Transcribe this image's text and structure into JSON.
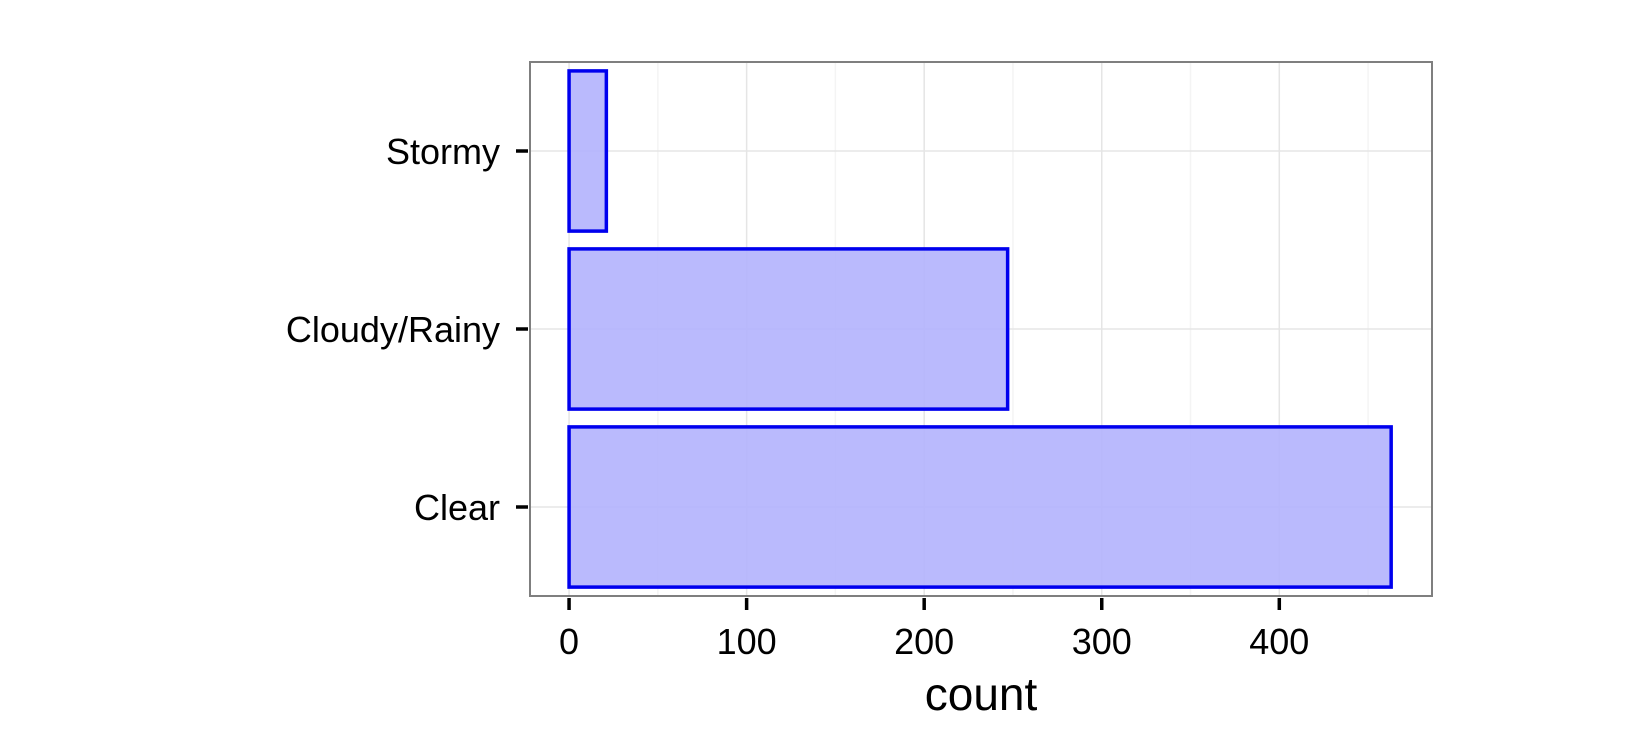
{
  "chart_data": {
    "type": "bar",
    "orientation": "horizontal",
    "categories": [
      "Clear",
      "Cloudy/Rainy",
      "Stormy"
    ],
    "values": [
      463,
      247,
      21
    ],
    "xlabel": "count",
    "ylabel": "",
    "xlim": [
      -22,
      486
    ],
    "x_ticks": [
      0,
      100,
      200,
      300,
      400
    ],
    "grid": true,
    "colors": {
      "bar_fill": "#b2b2fd",
      "bar_stroke": "#0000ee",
      "panel_border": "#7f7f7f",
      "grid_major": "#e5e5e5",
      "grid_minor": "#f4f4f4"
    }
  }
}
